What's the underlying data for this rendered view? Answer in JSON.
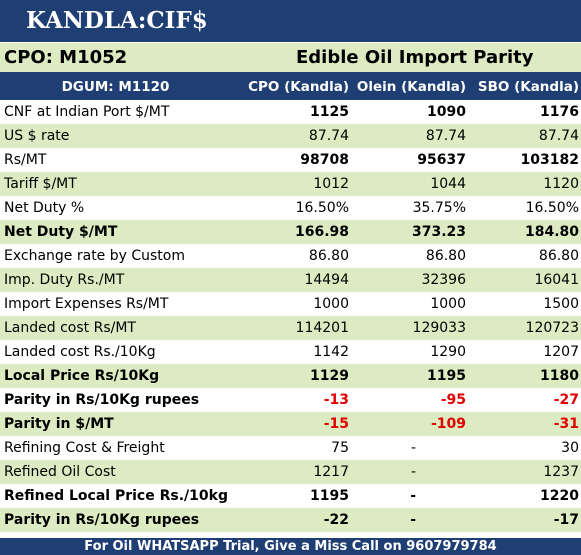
{
  "title": "KANDLA:CIF$",
  "sub_header": {
    "left": "CPO: M1052",
    "right": "Edible Oil Import Parity"
  },
  "columns": [
    "DGUM: M1120",
    "CPO (Kandla)",
    "Olein (Kandla)",
    "SBO (Kandla)"
  ],
  "rows": [
    {
      "label": "CNF at Indian Port $/MT",
      "values": [
        "1125",
        "1090",
        "1176"
      ],
      "bold_values": true
    },
    {
      "label": "US $ rate",
      "values": [
        "87.74",
        "87.74",
        "87.74"
      ]
    },
    {
      "label": "Rs/MT",
      "values": [
        "98708",
        "95637",
        "103182"
      ],
      "bold_values": true
    },
    {
      "label": "Tariff $/MT",
      "values": [
        "1012",
        "1044",
        "1120"
      ]
    },
    {
      "label": "Net Duty %",
      "values": [
        "16.50%",
        "35.75%",
        "16.50%"
      ]
    },
    {
      "label": "Net Duty $/MT",
      "values": [
        "166.98",
        "373.23",
        "184.80"
      ],
      "bold": true
    },
    {
      "label": "Exchange rate by Custom",
      "values": [
        "86.80",
        "86.80",
        "86.80"
      ]
    },
    {
      "label": "Imp. Duty Rs./MT",
      "values": [
        "14494",
        "32396",
        "16041"
      ]
    },
    {
      "label": "Import Expenses Rs/MT",
      "values": [
        "1000",
        "1000",
        "1500"
      ]
    },
    {
      "label": "Landed cost Rs/MT",
      "values": [
        "114201",
        "129033",
        "120723"
      ]
    },
    {
      "label": "Landed cost Rs./10Kg",
      "values": [
        "1142",
        "1290",
        "1207"
      ]
    },
    {
      "label": "Local Price Rs/10Kg",
      "values": [
        "1129",
        "1195",
        "1180"
      ],
      "bold": true
    },
    {
      "label": "Parity in Rs/10Kg rupees",
      "values": [
        "-13",
        "-95",
        "-27"
      ],
      "bold": true,
      "red": true
    },
    {
      "label": "Parity in $/MT",
      "values": [
        "-15",
        "-109",
        "-31"
      ],
      "bold": true,
      "red": true
    },
    {
      "label": "Refining Cost & Freight",
      "values": [
        "75",
        "-",
        "30"
      ]
    },
    {
      "label": "Refined Oil Cost",
      "values": [
        "1217",
        "-",
        "1237"
      ]
    },
    {
      "label": "Refined Local Price Rs./10kg",
      "values": [
        "1195",
        "-",
        "1220"
      ],
      "bold": true
    },
    {
      "label": "Parity in Rs/10Kg rupees",
      "values": [
        "-22",
        "-",
        "-17"
      ],
      "bold": true
    }
  ],
  "footer": "For Oil WHATSAPP Trial, Give a Miss Call on 9607979784",
  "colors": {
    "navy": "#1f3e73",
    "green_band": "#dcebc2",
    "negative": "#e00000"
  }
}
